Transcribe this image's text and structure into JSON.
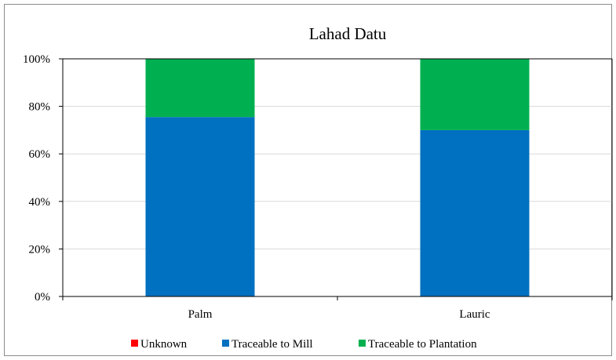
{
  "chart_data": {
    "type": "bar",
    "stacked": true,
    "title": "Lahad Datu",
    "categories": [
      "Palm",
      "Lauric"
    ],
    "series": [
      {
        "name": "Unknown",
        "color": "#ff0000",
        "values": [
          0,
          0
        ]
      },
      {
        "name": "Traceable to Mill",
        "color": "#0070c0",
        "values": [
          75.5,
          70
        ]
      },
      {
        "name": "Traceable to Plantation",
        "color": "#00b050",
        "values": [
          24.5,
          30
        ]
      }
    ],
    "ylim": [
      0,
      100
    ],
    "yticks": [
      "0%",
      "20%",
      "40%",
      "60%",
      "80%",
      "100%"
    ],
    "grid": true,
    "legend_position": "bottom"
  }
}
